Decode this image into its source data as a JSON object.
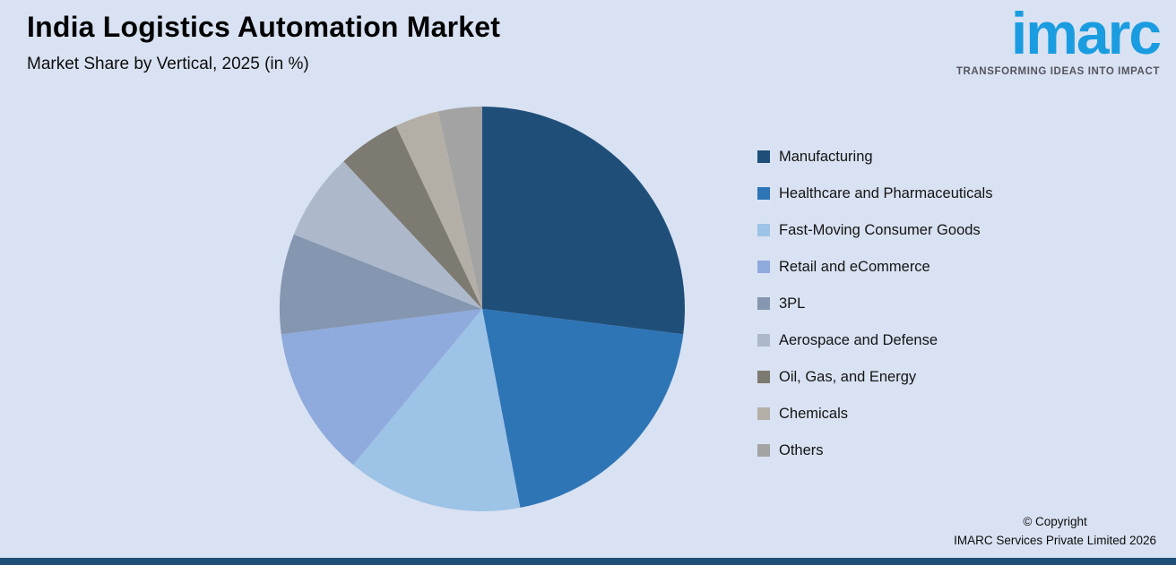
{
  "header": {
    "title": "India Logistics Automation Market",
    "subtitle": "Market Share by Vertical, 2025 (in %)"
  },
  "logo": {
    "brand": "imarc",
    "tagline": "TRANSFORMING IDEAS INTO IMPACT"
  },
  "footer": {
    "line1": "© Copyright",
    "line2": "IMARC Services Private Limited 2026"
  },
  "colors": {
    "background": "#d9e2f2",
    "accent_bar": "#1f4e79",
    "logo_blue": "#1a9de0"
  },
  "chart_data": {
    "type": "pie",
    "title": "India Logistics Automation Market",
    "subtitle": "Market Share by Vertical, 2025 (in %)",
    "start_angle_deg": 0,
    "direction": "clockwise",
    "legend_position": "right",
    "value_labels_shown": false,
    "values_are_estimated_percent": true,
    "slices": [
      {
        "label": "Manufacturing",
        "value": 27,
        "color": "#1f4e79"
      },
      {
        "label": "Healthcare and Pharmaceuticals",
        "value": 20,
        "color": "#2e75b6"
      },
      {
        "label": "Fast-Moving Consumer Goods",
        "value": 14,
        "color": "#9dc3e6"
      },
      {
        "label": "Retail and eCommerce",
        "value": 12,
        "color": "#8faadc"
      },
      {
        "label": "3PL",
        "value": 8,
        "color": "#8496b0"
      },
      {
        "label": "Aerospace and Defense",
        "value": 7,
        "color": "#adb9ca"
      },
      {
        "label": "Oil, Gas, and Energy",
        "value": 5,
        "color": "#7d7a71"
      },
      {
        "label": "Chemicals",
        "value": 3.5,
        "color": "#b3afa6"
      },
      {
        "label": "Others",
        "value": 3.5,
        "color": "#a3a3a3"
      }
    ]
  }
}
